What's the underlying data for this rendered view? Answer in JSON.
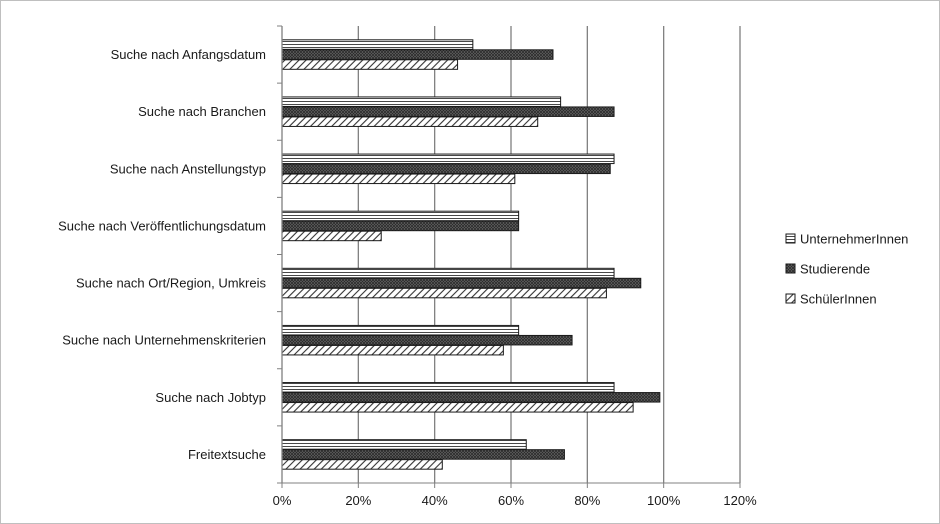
{
  "chart_data": {
    "type": "bar",
    "orientation": "horizontal",
    "categories": [
      "Suche nach Anfangsdatum",
      "Suche nach Branchen",
      "Suche nach Anstellungstyp",
      "Suche nach Veröffentlichungsdatum",
      "Suche nach Ort/Region, Umkreis",
      "Suche nach Unternehmenskriterien",
      "Suche nach Jobtyp",
      "Freitextsuche"
    ],
    "series": [
      {
        "name": "UnternehmerInnen",
        "pattern": "horizontal-lines",
        "values": [
          50,
          73,
          87,
          62,
          87,
          62,
          87,
          64
        ]
      },
      {
        "name": "Studierende",
        "pattern": "dense-crosshatch",
        "values": [
          71,
          87,
          86,
          62,
          94,
          76,
          99,
          74
        ]
      },
      {
        "name": "SchülerInnen",
        "pattern": "diagonal-hatch",
        "values": [
          46,
          67,
          61,
          26,
          85,
          58,
          92,
          42
        ]
      }
    ],
    "xlim": [
      0,
      120
    ],
    "xticks": [
      0,
      20,
      40,
      60,
      80,
      100,
      120
    ],
    "tick_suffix": "%",
    "grid": "vertical",
    "legend": "right",
    "title": "",
    "xlabel": "",
    "ylabel": ""
  },
  "colors": {
    "grid": "#808080",
    "ink": "#1a1a1a",
    "fill_dark": "#404040"
  }
}
